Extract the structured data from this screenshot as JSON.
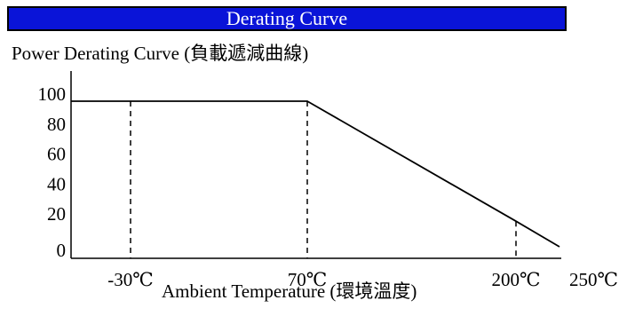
{
  "header": {
    "title": "Derating Curve",
    "colors": {
      "bar": "#0a14d8",
      "text": "#ffffff"
    }
  },
  "chart_data": {
    "type": "line",
    "title": "Power Derating Curve (負載遞減曲線)",
    "xlabel": "Ambient Temperature (環境溫度)",
    "ylabel": "",
    "ylim": [
      0,
      100
    ],
    "y_ticks": [
      "100",
      "80",
      "60",
      "40",
      "20",
      "0"
    ],
    "x_ticks": [
      "-30℃",
      "70℃",
      "200℃",
      "250℃"
    ],
    "grid": false,
    "series": [
      {
        "x": [
          -60,
          70,
          200,
          250
        ],
        "y": [
          100,
          100,
          20,
          0
        ]
      }
    ],
    "reference_lines": [
      {
        "x": -30,
        "style": "dashed"
      },
      {
        "x": 70,
        "style": "dashed"
      },
      {
        "x": 200,
        "style": "dashed"
      }
    ]
  }
}
